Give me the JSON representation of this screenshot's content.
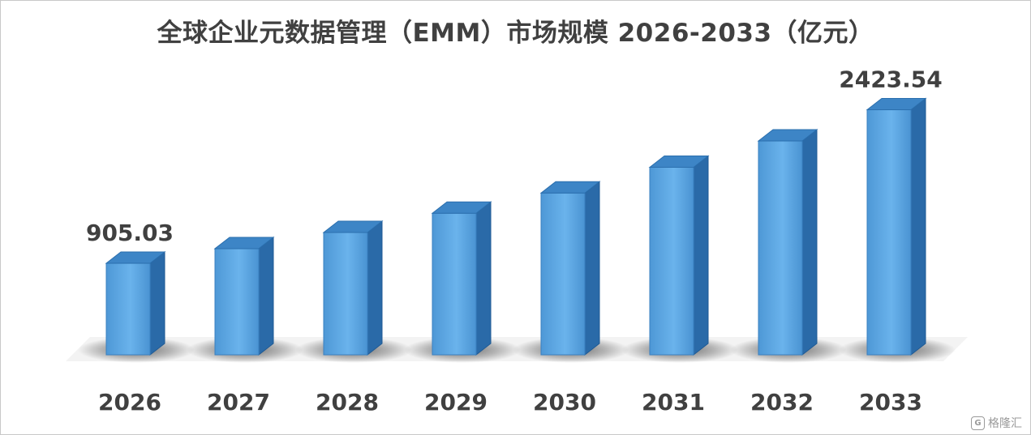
{
  "chart_data": {
    "type": "bar",
    "title": "全球企业元数据管理（EMM）市场规模 2026-2033（亿元）",
    "categories": [
      "2026",
      "2027",
      "2028",
      "2029",
      "2030",
      "2031",
      "2032",
      "2033"
    ],
    "values": [
      905.03,
      1050,
      1210,
      1400,
      1600,
      1855,
      2115,
      2423.54
    ],
    "data_labels": [
      "905.03",
      "",
      "",
      "",
      "",
      "",
      "",
      "2423.54"
    ],
    "ylim": [
      0,
      2700
    ],
    "grid": false,
    "legend": "none",
    "colors": {
      "bar_front": "#5aa4e0",
      "bar_front_light": "#6bb6ee",
      "bar_side": "#2a6aa8",
      "bar_top": "#3d85c6",
      "label": "#404040"
    }
  },
  "watermark": {
    "logo": "G",
    "text": "格隆汇"
  }
}
